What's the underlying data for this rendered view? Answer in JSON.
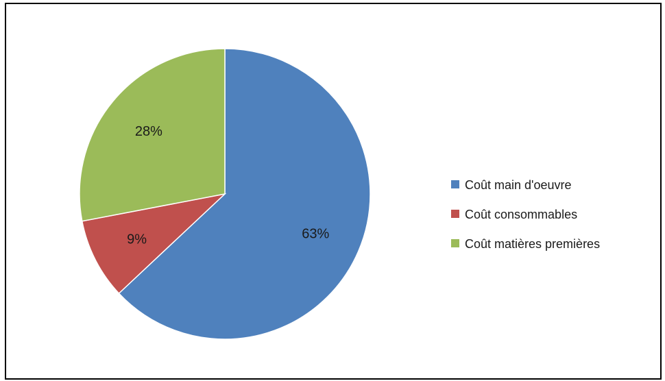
{
  "chart_data": {
    "type": "pie",
    "title": "",
    "start_angle_deg": 0,
    "direction": "clockwise",
    "legend_position": "right",
    "slices": [
      {
        "name": "Coût main d'oeuvre",
        "value": 63,
        "label": "63%",
        "color": "#4F81BD"
      },
      {
        "name": "Coût consommables",
        "value": 9,
        "label": "9%",
        "color": "#C0504D"
      },
      {
        "name": "Coût matières premières",
        "value": 28,
        "label": "28%",
        "color": "#9BBB59"
      }
    ]
  }
}
